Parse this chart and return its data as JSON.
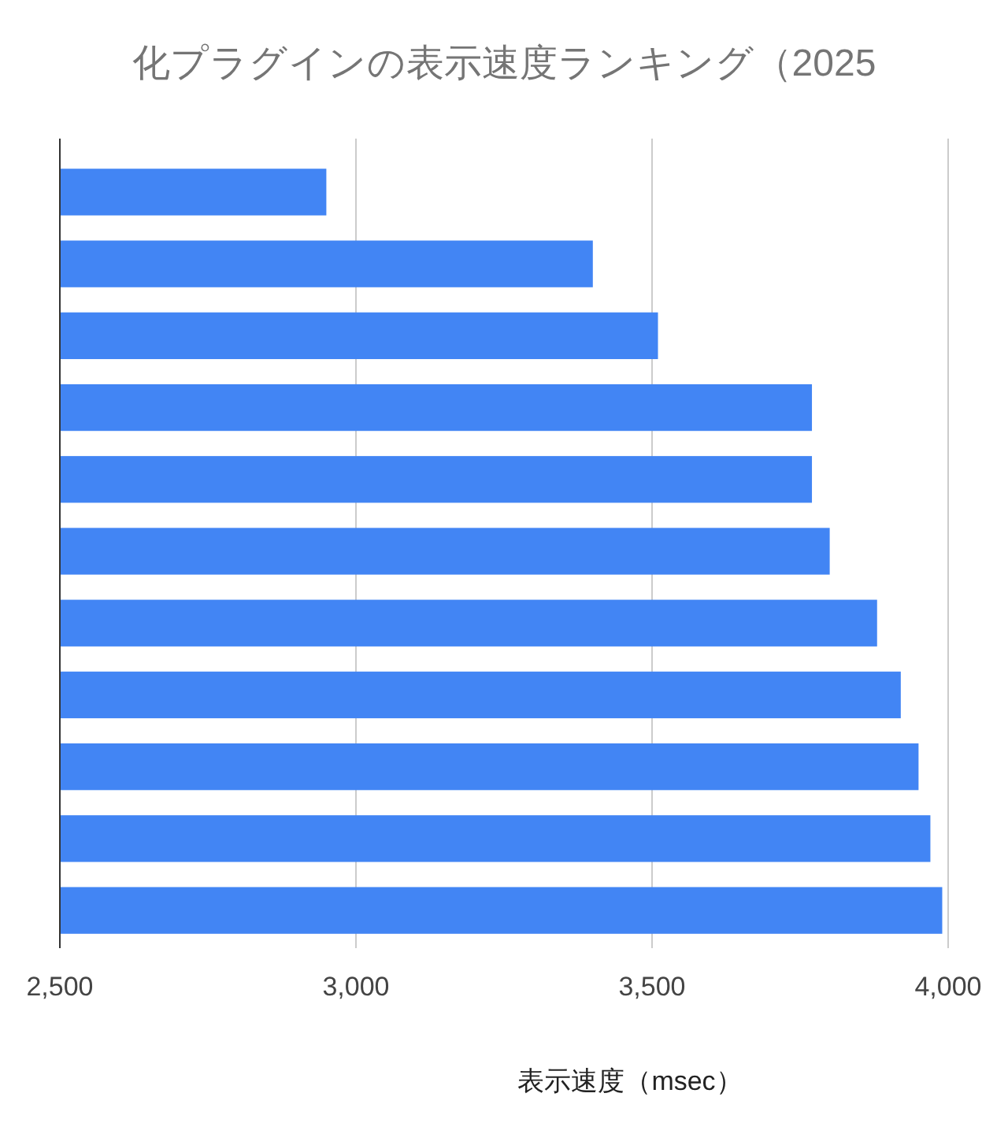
{
  "chart_data": {
    "type": "bar",
    "orientation": "horizontal",
    "title": "化プラグインの表示速度ランキング（2025",
    "xlabel": "表示速度（msec）",
    "categories": [
      null,
      null,
      null,
      null,
      null,
      null,
      null,
      null,
      null,
      null,
      null
    ],
    "values": [
      2950,
      3400,
      3510,
      3770,
      3770,
      3800,
      3880,
      3920,
      3950,
      3970,
      3990
    ],
    "color": "#4285f4",
    "xlim": [
      2500,
      4000
    ],
    "xticks": [
      {
        "value": 2500,
        "label": "2,500"
      },
      {
        "value": 3000,
        "label": "3,000"
      },
      {
        "value": 3500,
        "label": "3,500"
      },
      {
        "value": 4000,
        "label": "4,000"
      }
    ],
    "grid": "x"
  }
}
